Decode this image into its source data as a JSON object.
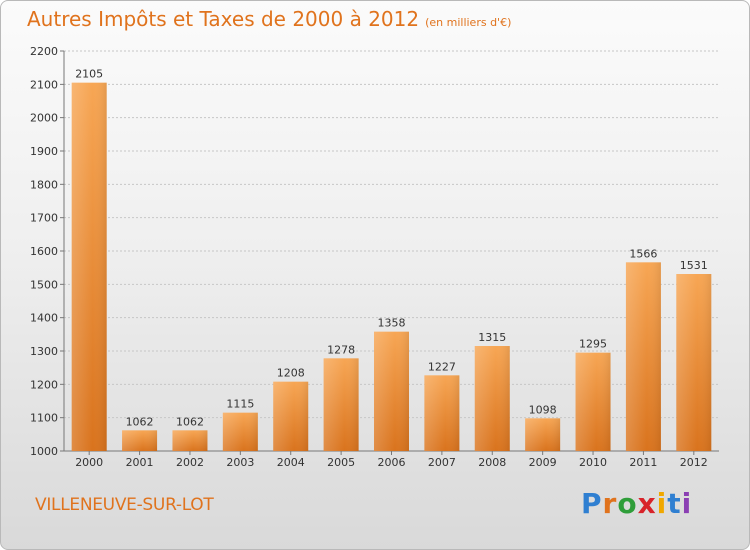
{
  "title": "Autres Impôts et Taxes de 2000 à 2012",
  "subtitle": "(en milliers d'€)",
  "footer": {
    "city": "VILLENEUVE-SUR-LOT"
  },
  "logo": {
    "text": "Proxiti",
    "colors": [
      "#2f7fd1",
      "#e0731d",
      "#2f9e3a",
      "#d8232a",
      "#f0a800",
      "#2f7fd1",
      "#8b3fb3"
    ]
  },
  "colors": {
    "bar_light": "#f7a654",
    "bar_dark": "#d9731d",
    "accent": "#e0731d",
    "grid": "#c6c6c6"
  },
  "chart_data": {
    "type": "bar",
    "categories": [
      "2000",
      "2001",
      "2002",
      "2003",
      "2004",
      "2005",
      "2006",
      "2007",
      "2008",
      "2009",
      "2010",
      "2011",
      "2012"
    ],
    "values": [
      2105,
      1062,
      1062,
      1115,
      1208,
      1278,
      1358,
      1227,
      1315,
      1098,
      1295,
      1566,
      1531
    ],
    "ylim": [
      1000,
      2200
    ],
    "yticks": [
      1000,
      1100,
      1200,
      1300,
      1400,
      1500,
      1600,
      1700,
      1800,
      1900,
      2000,
      2100,
      2200
    ],
    "grid": true,
    "data_labels": true
  }
}
